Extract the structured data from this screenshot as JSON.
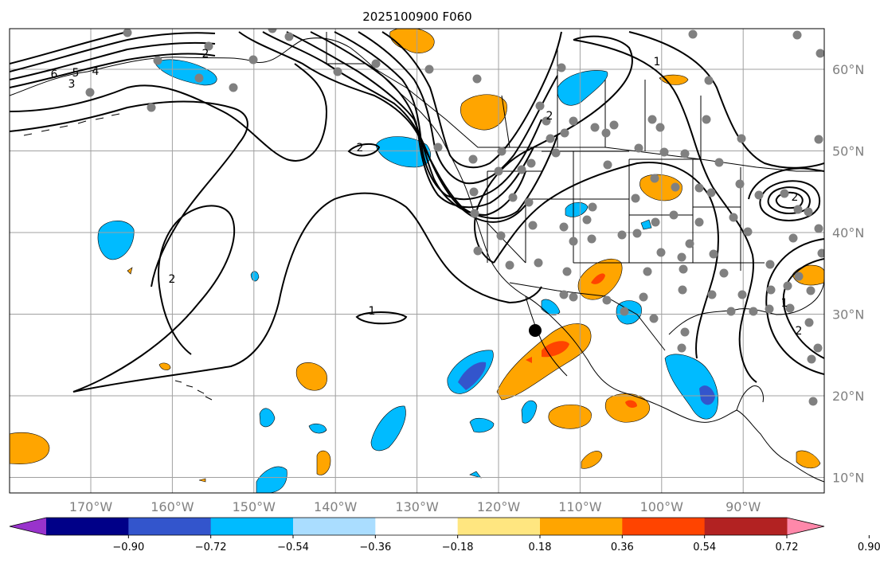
{
  "title": "2025100900 F060",
  "map": {
    "lon_labels": [
      "170°W",
      "160°W",
      "150°W",
      "140°W",
      "130°W",
      "120°W",
      "110°W",
      "100°W",
      "90°W"
    ],
    "lon_values": [
      -170,
      -160,
      -150,
      -140,
      -130,
      -120,
      -110,
      -100,
      -90
    ],
    "lat_labels": [
      "60°N",
      "50°N",
      "40°N",
      "30°N",
      "20°N",
      "10°N"
    ],
    "lat_values": [
      60,
      50,
      40,
      30,
      20,
      10
    ],
    "contour_labels": [
      "6",
      "5",
      "4",
      "3",
      "2",
      "2",
      "2",
      "1",
      "1",
      "2",
      "2",
      "1",
      "2"
    ]
  },
  "colorbar": {
    "tick_labels": [
      "−0.90",
      "−0.72",
      "−0.54",
      "−0.36",
      "−0.18",
      "0.18",
      "0.36",
      "0.54",
      "0.72",
      "0.90"
    ],
    "levels": [
      -0.9,
      -0.72,
      -0.54,
      -0.36,
      -0.18,
      0.18,
      0.36,
      0.54,
      0.72,
      0.9
    ],
    "colors": [
      "#9933cc",
      "#000088",
      "#3355cc",
      "#00bbff",
      "#aaddff",
      "#ffffff",
      "#ffe680",
      "#ffa500",
      "#ff4400",
      "#b22222",
      "#ff88aa"
    ]
  },
  "colors": {
    "grid": "#a0a0a0",
    "station": "#808080",
    "positive_1": "#ffa500",
    "positive_2": "#ff4400",
    "negative_1": "#00bbff",
    "negative_2": "#3355cc"
  }
}
